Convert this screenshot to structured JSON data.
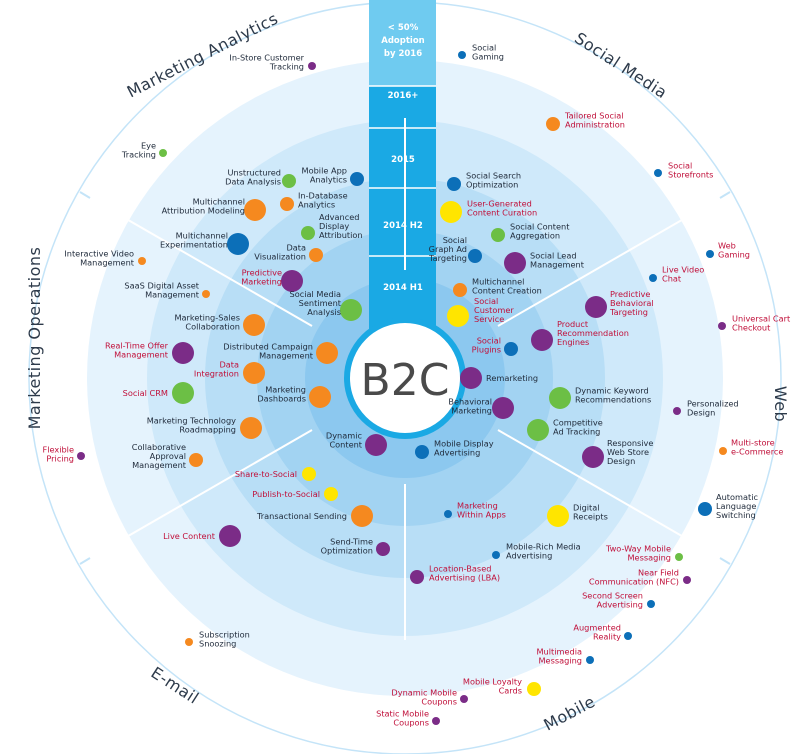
{
  "center": {
    "label": "B2C"
  },
  "colors": {
    "ring_outer": "#e5f3fd",
    "ring_1": "#cfe9fa",
    "ring_2": "#b8def6",
    "ring_3": "#a2d3f2",
    "ring_4": "#8cc8ef",
    "band": "#1aa9e4",
    "band_top": "#6fcbf0",
    "divider": "#ffffff",
    "label_normal": "#1f2a3a",
    "label_highlight": "#c0103a",
    "orange": "#f5891f",
    "green": "#6cbf45",
    "purple": "#7b2c87",
    "blue": "#0c6fb8",
    "yellow": "#ffe500"
  },
  "adoption_band": [
    "< 50% Adoption by 2016",
    "2016+",
    "2015",
    "2014 H2",
    "2014 H1"
  ],
  "segments": [
    "Marketing Analytics",
    "Social Media",
    "Web",
    "Mobile",
    "E-mail",
    "Marketing Operations"
  ],
  "items": [
    {
      "label": "In-Store Customer Tracking",
      "color": "purple",
      "size": "s",
      "highlight": false
    },
    {
      "label": "Eye Tracking",
      "color": "green",
      "size": "s",
      "highlight": false
    },
    {
      "label": "Unstructured Data Analysis",
      "color": "green",
      "size": "m",
      "highlight": false
    },
    {
      "label": "Mobile App Analytics",
      "color": "blue",
      "size": "m",
      "highlight": false
    },
    {
      "label": "Multichannel Attribution Modeling",
      "color": "orange",
      "size": "l",
      "highlight": false
    },
    {
      "label": "In-Database Analytics",
      "color": "orange",
      "size": "m",
      "highlight": false
    },
    {
      "label": "Advanced Display Attribution",
      "color": "green",
      "size": "m",
      "highlight": false
    },
    {
      "label": "Multichannel Experimentation",
      "color": "blue",
      "size": "l",
      "highlight": false
    },
    {
      "label": "Data Visualization",
      "color": "orange",
      "size": "m",
      "highlight": false
    },
    {
      "label": "Predictive Marketing",
      "color": "purple",
      "size": "l",
      "highlight": true
    },
    {
      "label": "Social Media Sentiment Analysis",
      "color": "green",
      "size": "l",
      "highlight": false
    },
    {
      "label": "Social Gaming",
      "color": "blue",
      "size": "s",
      "highlight": false
    },
    {
      "label": "Tailored Social Administration",
      "color": "orange",
      "size": "m",
      "highlight": true
    },
    {
      "label": "Social Storefronts",
      "color": "blue",
      "size": "s",
      "highlight": true
    },
    {
      "label": "Social Search Optimization",
      "color": "blue",
      "size": "m",
      "highlight": false
    },
    {
      "label": "User-Generated Content Curation",
      "color": "yellow",
      "size": "l",
      "highlight": true
    },
    {
      "label": "Social Content Aggregation",
      "color": "green",
      "size": "m",
      "highlight": false
    },
    {
      "label": "Social Graph Ad Targeting",
      "color": "blue",
      "size": "m",
      "highlight": false
    },
    {
      "label": "Social Lead Management",
      "color": "purple",
      "size": "l",
      "highlight": false
    },
    {
      "label": "Multichannel Content Creation",
      "color": "orange",
      "size": "m",
      "highlight": false
    },
    {
      "label": "Social Customer Service",
      "color": "yellow",
      "size": "l",
      "highlight": true
    },
    {
      "label": "Social Plugins",
      "color": "blue",
      "size": "m",
      "highlight": true
    },
    {
      "label": "Web Gaming",
      "color": "blue",
      "size": "s",
      "highlight": true
    },
    {
      "label": "Live Video Chat",
      "color": "blue",
      "size": "s",
      "highlight": true
    },
    {
      "label": "Universal Cart Checkout",
      "color": "purple",
      "size": "s",
      "highlight": true
    },
    {
      "label": "Predictive Behavioral Targeting",
      "color": "purple",
      "size": "l",
      "highlight": true
    },
    {
      "label": "Product Recommendation Engines",
      "color": "purple",
      "size": "l",
      "highlight": true
    },
    {
      "label": "Remarketing",
      "color": "purple",
      "size": "l",
      "highlight": false
    },
    {
      "label": "Dynamic Keyword Recommendations",
      "color": "green",
      "size": "l",
      "highlight": false
    },
    {
      "label": "Personalized Design",
      "color": "purple",
      "size": "s",
      "highlight": false
    },
    {
      "label": "Behavioral Marketing",
      "color": "purple",
      "size": "l",
      "highlight": false
    },
    {
      "label": "Competitive Ad Tracking",
      "color": "green",
      "size": "l",
      "highlight": false
    },
    {
      "label": "Multi-store e-Commerce",
      "color": "orange",
      "size": "s",
      "highlight": true
    },
    {
      "label": "Responsive Web Store Design",
      "color": "purple",
      "size": "l",
      "highlight": false
    },
    {
      "label": "Automatic Language Switching",
      "color": "blue",
      "size": "m",
      "highlight": false
    },
    {
      "label": "Mobile Display Advertising",
      "color": "blue",
      "size": "m",
      "highlight": false
    },
    {
      "label": "Marketing Within Apps",
      "color": "blue",
      "size": "s",
      "highlight": true
    },
    {
      "label": "Digital Receipts",
      "color": "yellow",
      "size": "l",
      "highlight": false
    },
    {
      "label": "Mobile-Rich Media Advertising",
      "color": "blue",
      "size": "s",
      "highlight": false
    },
    {
      "label": "Two-Way Mobile Messaging",
      "color": "green",
      "size": "s",
      "highlight": true
    },
    {
      "label": "Near Field Communication (NFC)",
      "color": "purple",
      "size": "s",
      "highlight": true
    },
    {
      "label": "Location-Based Advertising (LBA)",
      "color": "purple",
      "size": "m",
      "highlight": true
    },
    {
      "label": "Second Screen Advertising",
      "color": "blue",
      "size": "s",
      "highlight": true
    },
    {
      "label": "Augmented Reality",
      "color": "blue",
      "size": "s",
      "highlight": true
    },
    {
      "label": "Multimedia Messaging",
      "color": "blue",
      "size": "s",
      "highlight": true
    },
    {
      "label": "Mobile Loyalty Cards",
      "color": "yellow",
      "size": "m",
      "highlight": true
    },
    {
      "label": "Dynamic Mobile Coupons",
      "color": "purple",
      "size": "s",
      "highlight": true
    },
    {
      "label": "Static Mobile Coupons",
      "color": "purple",
      "size": "s",
      "highlight": true
    },
    {
      "label": "Dynamic Content",
      "color": "purple",
      "size": "l",
      "highlight": false
    },
    {
      "label": "Share-to-Social",
      "color": "yellow",
      "size": "m",
      "highlight": true
    },
    {
      "label": "Publish-to-Social",
      "color": "yellow",
      "size": "m",
      "highlight": true
    },
    {
      "label": "Transactional Sending",
      "color": "orange",
      "size": "l",
      "highlight": false
    },
    {
      "label": "Live Content",
      "color": "purple",
      "size": "l",
      "highlight": true
    },
    {
      "label": "Send-Time Optimization",
      "color": "purple",
      "size": "m",
      "highlight": false
    },
    {
      "label": "Subscription Snoozing",
      "color": "orange",
      "size": "s",
      "highlight": false
    },
    {
      "label": "Interactive Video Management",
      "color": "orange",
      "size": "s",
      "highlight": false
    },
    {
      "label": "SaaS Digital Asset Management",
      "color": "orange",
      "size": "s",
      "highlight": false
    },
    {
      "label": "Marketing-Sales Collaboration",
      "color": "orange",
      "size": "l",
      "highlight": false
    },
    {
      "label": "Real-Time Offer Management",
      "color": "purple",
      "size": "l",
      "highlight": true
    },
    {
      "label": "Distributed Campaign Management",
      "color": "orange",
      "size": "l",
      "highlight": false
    },
    {
      "label": "Data Integration",
      "color": "orange",
      "size": "l",
      "highlight": true
    },
    {
      "label": "Social CRM",
      "color": "green",
      "size": "l",
      "highlight": true
    },
    {
      "label": "Marketing Dashboards",
      "color": "orange",
      "size": "l",
      "highlight": false
    },
    {
      "label": "Marketing Technology Roadmapping",
      "color": "orange",
      "size": "l",
      "highlight": false
    },
    {
      "label": "Collaborative Approval Management",
      "color": "orange",
      "size": "m",
      "highlight": false
    },
    {
      "label": "Flexible Pricing",
      "color": "purple",
      "size": "s",
      "highlight": true
    }
  ]
}
